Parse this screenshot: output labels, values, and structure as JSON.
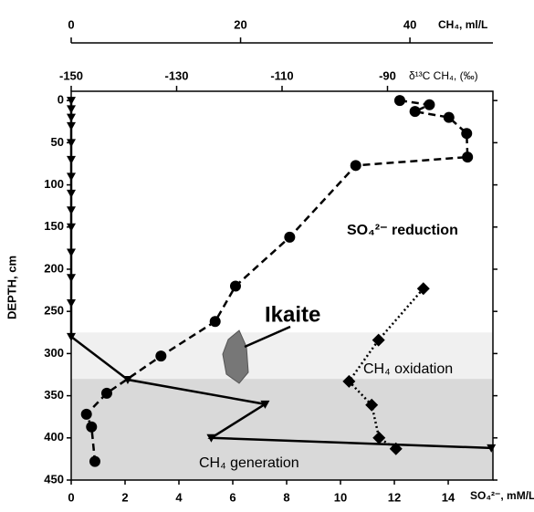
{
  "chart_data": {
    "type": "line",
    "y_label": "DEPTH, cm",
    "ylim": [
      -11,
      450
    ],
    "y_reversed": true,
    "yticks": [
      0,
      50,
      100,
      150,
      200,
      250,
      300,
      350,
      400,
      450
    ],
    "xlabel": "SO₄²⁻, mM/L",
    "xlim": [
      0,
      15.66
    ],
    "xticks": [
      0,
      2,
      4,
      6,
      8,
      10,
      12,
      14
    ],
    "x2label": "CH₄, ml/L",
    "x2lim": [
      0,
      49.8
    ],
    "x2ticks": [
      0,
      20,
      40
    ],
    "x3label": "δ¹³C CH₄, (‰)",
    "x3lim": [
      -150,
      -70
    ],
    "x3ticks": [
      -150,
      -130,
      -110,
      -90
    ],
    "zones": [
      {
        "from": 275,
        "to": 330,
        "color": "#f0f0f0"
      },
      {
        "from": 330,
        "to": 450,
        "color": "#d9d9d9"
      }
    ],
    "series": [
      {
        "axis": "x2",
        "color": "#000000",
        "marker": "circle",
        "line_style": "dashed",
        "values": [
          38.8,
          42.3,
          40.6,
          44.6,
          46.7,
          46.8,
          33.6,
          25.8,
          19.4,
          17.0,
          10.6,
          4.2,
          1.8,
          2.4,
          2.8
        ],
        "depth": [
          0,
          5,
          13,
          20,
          39,
          67,
          77,
          162,
          220,
          262,
          303,
          347,
          372,
          387,
          428
        ]
      },
      {
        "axis": "x",
        "color": "#000000",
        "marker": "triangle",
        "line_style": "solid",
        "values": [
          0,
          0,
          0,
          0,
          0,
          0,
          0,
          0,
          0,
          0,
          0,
          0,
          0,
          0,
          2.1,
          7.2,
          5.2,
          15.6
        ],
        "depth": [
          0,
          10,
          20,
          30,
          50,
          70,
          90,
          110,
          130,
          150,
          180,
          210,
          240,
          280,
          331,
          360,
          400,
          412
        ]
      },
      {
        "axis": "x3",
        "color": "#000000",
        "marker": "diamond",
        "line_style": "dotted",
        "values": [
          -83.2,
          -91.7,
          -97.3,
          -93.0,
          -91.6,
          -88.4
        ],
        "depth": [
          223,
          284,
          333,
          361,
          400,
          413
        ]
      }
    ],
    "annotations": [
      "SO₄²⁻ reduction",
      "Ikaite",
      "CH₄ oxidation",
      "CH₄ generation"
    ]
  }
}
